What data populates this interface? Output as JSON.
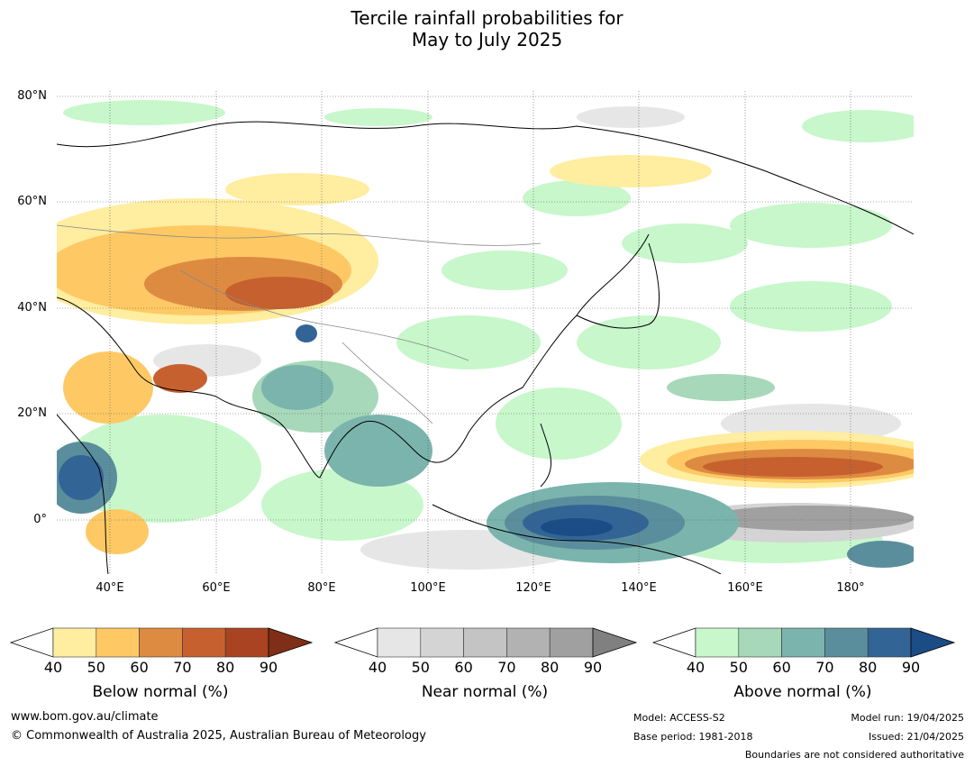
{
  "title_line1": "Tercile rainfall probabilities for",
  "title_line2": "May to July 2025",
  "lat_labels": [
    "80°N",
    "60°N",
    "40°N",
    "20°N",
    "0°"
  ],
  "lon_labels": [
    "40°E",
    "60°E",
    "80°E",
    "100°E",
    "120°E",
    "140°E",
    "160°E",
    "180°"
  ],
  "colorbars": [
    {
      "label": "Below normal (%)",
      "ticks": [
        "40",
        "50",
        "60",
        "70",
        "80",
        "90"
      ],
      "colors": [
        "#ffeda0",
        "#fec965",
        "#de8b42",
        "#c6612f",
        "#a94321",
        "#7f2f17"
      ]
    },
    {
      "label": "Near normal (%)",
      "ticks": [
        "40",
        "50",
        "60",
        "70",
        "80",
        "90"
      ],
      "colors": [
        "#e6e6e6",
        "#d4d4d4",
        "#c4c4c4",
        "#b2b2b2",
        "#a0a0a0",
        "#808080"
      ]
    },
    {
      "label": "Above normal (%)",
      "ticks": [
        "40",
        "50",
        "60",
        "70",
        "80",
        "90"
      ],
      "colors": [
        "#c7f7cb",
        "#a6d8b9",
        "#7ab4ad",
        "#5b8e9c",
        "#336496",
        "#1c4c86"
      ]
    }
  ],
  "footer": {
    "url": "www.bom.gov.au/climate",
    "copyright": "© Commonwealth of Australia 2025, Australian Bureau of Meteorology",
    "model": "Model: ACCESS-S2",
    "base_period": "Base period: 1981-2018",
    "model_run": "Model run: 19/04/2025",
    "issued": "Issued: 21/04/2025",
    "boundaries": "Boundaries are not considered authoritative"
  }
}
